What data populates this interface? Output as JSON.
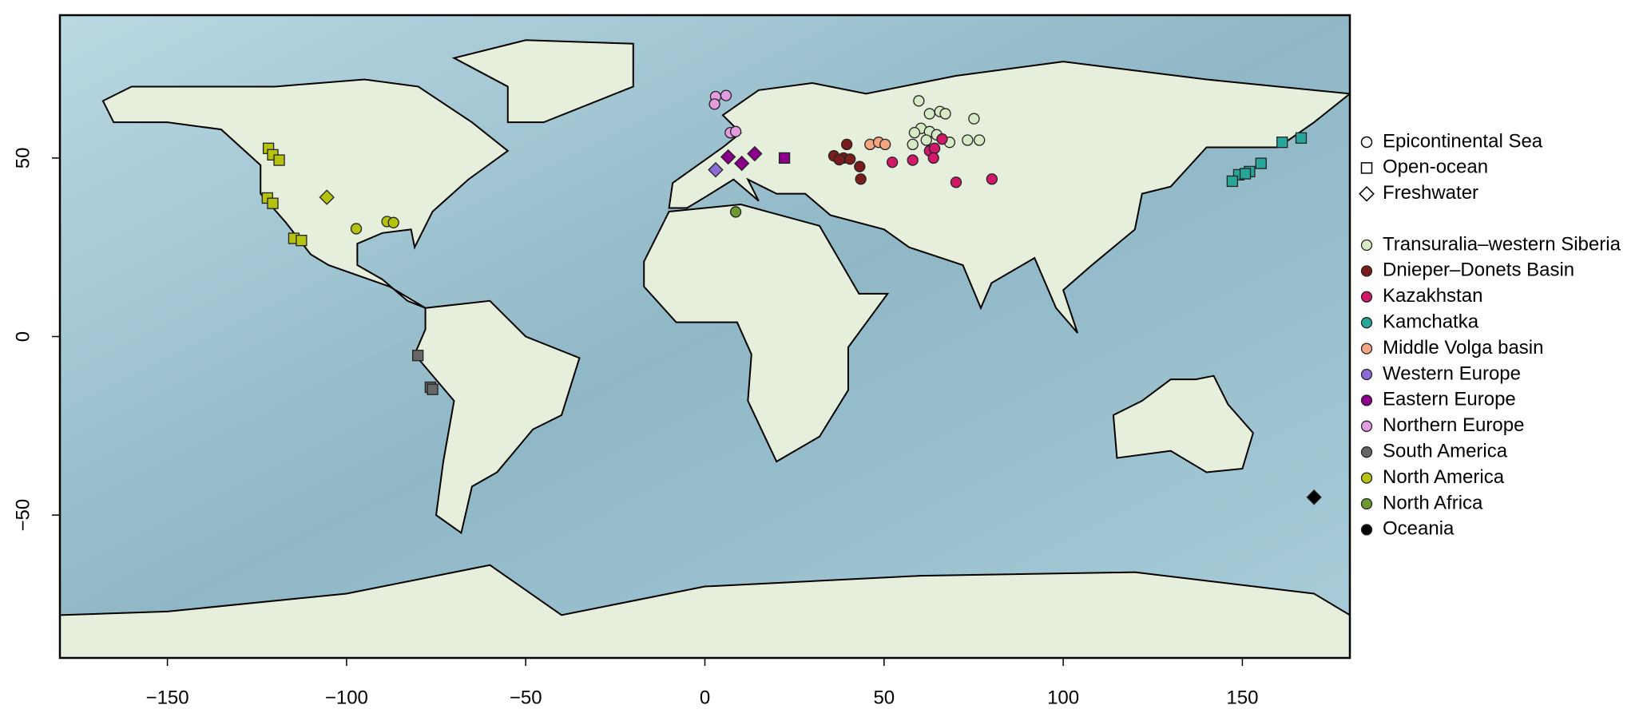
{
  "chart_data": {
    "type": "map",
    "xlim": [
      -180,
      180
    ],
    "ylim": [
      -90,
      90
    ],
    "xticks": [
      {
        "value": -150,
        "label": "−150"
      },
      {
        "value": -100,
        "label": "−100"
      },
      {
        "value": -50,
        "label": "−50"
      },
      0,
      50,
      100,
      150
    ],
    "yticks": [
      {
        "value": -50,
        "label": "−50"
      },
      0,
      50
    ],
    "shape_legend": [
      {
        "name": "Epicontinental Sea",
        "shape": "circle"
      },
      {
        "name": "Open-ocean",
        "shape": "square"
      },
      {
        "name": "Freshwater",
        "shape": "diamond"
      }
    ],
    "series": [
      {
        "name": "Transuralia–western Siberia",
        "color": "#d6ebc4",
        "x": [
          59.7,
          62.7,
          65.6,
          67.1,
          60.3,
          62.7,
          58.5,
          64.7,
          61.8,
          73.3,
          76.6,
          75.1,
          68.3,
          58
        ],
        "y": [
          66,
          62.4,
          63,
          62.4,
          58.3,
          57.4,
          57.1,
          56.5,
          55,
          55,
          55,
          61,
          54.4,
          53.8
        ],
        "shapes": [
          "circle",
          "circle",
          "circle",
          "circle",
          "circle",
          "circle",
          "circle",
          "circle",
          "circle",
          "circle",
          "circle",
          "circle",
          "circle",
          "circle"
        ]
      },
      {
        "name": "Dnieper–Donets Basin",
        "color": "#7b1c1c",
        "x": [
          39.6,
          36,
          38.7,
          40.5,
          43.2,
          43.5,
          37.5
        ],
        "y": [
          53.8,
          50.6,
          50,
          49.7,
          47.6,
          44.1,
          49.5
        ],
        "shapes": [
          "circle",
          "circle",
          "circle",
          "circle",
          "circle",
          "circle",
          "circle"
        ]
      },
      {
        "name": "Kazakhstan",
        "color": "#d1186a",
        "x": [
          52.3,
          58,
          62.7,
          64.1,
          66.2,
          70.1,
          80.1,
          63.8
        ],
        "y": [
          48.8,
          49.4,
          52,
          52.7,
          55.3,
          43.2,
          44.1,
          50
        ],
        "shapes": [
          "circle",
          "circle",
          "circle",
          "circle",
          "circle",
          "circle",
          "circle",
          "circle"
        ]
      },
      {
        "name": "Kamchatka",
        "color": "#26a69a",
        "x": [
          161.1,
          166.4,
          155.2,
          152,
          149,
          147.2,
          150.8
        ],
        "y": [
          54.4,
          55.6,
          48.5,
          46.2,
          45.3,
          43.5,
          45.6
        ],
        "shapes": [
          "square",
          "square",
          "square",
          "square",
          "square",
          "square",
          "square"
        ]
      },
      {
        "name": "Middle Volga basin",
        "color": "#f4a582",
        "x": [
          46.1,
          48.5,
          50.3
        ],
        "y": [
          53.8,
          54.4,
          53.8
        ],
        "shapes": [
          "circle",
          "circle",
          "circle"
        ]
      },
      {
        "name": "Western Europe",
        "color": "#8c6bd6",
        "x": [
          3
        ],
        "y": [
          46.7
        ],
        "shapes": [
          "diamond"
        ]
      },
      {
        "name": "Eastern Europe",
        "color": "#8b008b",
        "x": [
          6.5,
          10.3,
          13.9,
          22.2
        ],
        "y": [
          50.3,
          48.5,
          51.2,
          50
        ],
        "shapes": [
          "diamond",
          "diamond",
          "diamond",
          "square"
        ]
      },
      {
        "name": "Northern Europe",
        "color": "#e39ce0",
        "x": [
          3,
          5.9,
          2.7,
          7.1,
          8.6
        ],
        "y": [
          67.2,
          67.5,
          65.1,
          57.1,
          57.4
        ],
        "shapes": [
          "circle",
          "circle",
          "circle",
          "circle",
          "circle"
        ]
      },
      {
        "name": "South America",
        "color": "#666666",
        "x": [
          -80.1,
          -76.6,
          -76
        ],
        "y": [
          -5.3,
          -14.2,
          -14.8
        ],
        "shapes": [
          "square",
          "square",
          "square"
        ]
      },
      {
        "name": "North America",
        "color": "#b5c20f",
        "x": [
          -121.8,
          -120.6,
          -118.8,
          -122.1,
          -120.6,
          -114.7,
          -112.6,
          -105.5,
          -97.3,
          -88.7,
          -86.9
        ],
        "y": [
          52.7,
          50.9,
          49.4,
          38.8,
          37.3,
          27.5,
          26.9,
          39,
          30.2,
          32.2,
          31.9
        ],
        "shapes": [
          "square",
          "square",
          "square",
          "square",
          "square",
          "square",
          "square",
          "diamond",
          "circle",
          "circle",
          "circle"
        ]
      },
      {
        "name": "North Africa",
        "color": "#6b9a2e",
        "x": [
          8.6
        ],
        "y": [
          34.9
        ],
        "shapes": [
          "circle"
        ]
      },
      {
        "name": "Oceania",
        "color": "#000000",
        "x": [
          170
        ],
        "y": [
          -45
        ],
        "shapes": [
          "diamond"
        ]
      }
    ]
  }
}
